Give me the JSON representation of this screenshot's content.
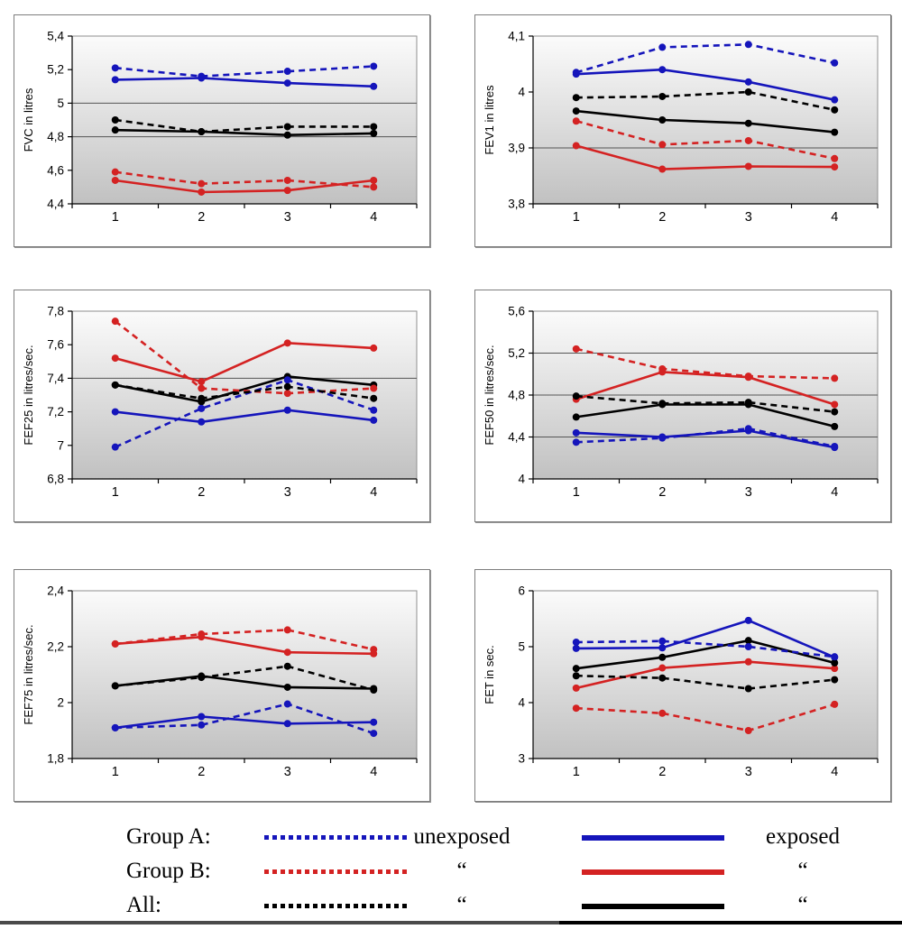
{
  "page": {
    "background": "#ffffff"
  },
  "colors": {
    "group_a": "#1515bb",
    "group_b": "#d42222",
    "all": "#000000"
  },
  "legend": {
    "rows": [
      {
        "label": "Group A:",
        "color": "#1515bb",
        "dashed_text": "unexposed",
        "solid_text": "exposed"
      },
      {
        "label": "Group B:",
        "color": "#d42222",
        "dashed_text": "“",
        "solid_text": "“"
      },
      {
        "label": "All:",
        "color": "#000000",
        "dashed_text": "“",
        "solid_text": "“"
      }
    ]
  },
  "chart_data": [
    {
      "type": "line",
      "id": "fvc",
      "ylabel": "FVC in litres",
      "ylim": [
        4.4,
        5.4
      ],
      "ytick_values": [
        5.4,
        5.2,
        5.0,
        4.8,
        4.6,
        4.4
      ],
      "ytick_labels": [
        "5,4",
        "5,2",
        "5",
        "4,8",
        "4,6",
        "4,4"
      ],
      "gridlines": [
        5.0,
        4.8
      ],
      "categories": [
        "1",
        "2",
        "3",
        "4"
      ],
      "series": [
        {
          "name": "Group A exposed",
          "color": "#1515bb",
          "style": "solid",
          "values": [
            5.14,
            5.15,
            5.12,
            5.1
          ]
        },
        {
          "name": "Group B exposed",
          "color": "#d42222",
          "style": "solid",
          "values": [
            4.54,
            4.47,
            4.48,
            4.54
          ]
        },
        {
          "name": "All exposed",
          "color": "#000000",
          "style": "solid",
          "values": [
            4.84,
            4.83,
            4.81,
            4.82
          ]
        },
        {
          "name": "Group A unexposed",
          "color": "#1515bb",
          "style": "dashed",
          "values": [
            5.21,
            5.16,
            5.19,
            5.22
          ]
        },
        {
          "name": "Group B unexposed",
          "color": "#d42222",
          "style": "dashed",
          "values": [
            4.59,
            4.52,
            4.54,
            4.5
          ]
        },
        {
          "name": "All unexposed",
          "color": "#000000",
          "style": "dashed",
          "values": [
            4.9,
            4.83,
            4.86,
            4.86
          ]
        }
      ]
    },
    {
      "type": "line",
      "id": "fev1",
      "ylabel": "FEV1 in litres",
      "ylim": [
        3.8,
        4.1
      ],
      "ytick_values": [
        4.1,
        4.0,
        3.9,
        3.8
      ],
      "ytick_labels": [
        "4,1",
        "4",
        "3,9",
        "3,8"
      ],
      "gridlines": [
        3.9
      ],
      "categories": [
        "1",
        "2",
        "3",
        "4"
      ],
      "series": [
        {
          "name": "Group A exposed",
          "color": "#1515bb",
          "style": "solid",
          "values": [
            4.032,
            4.04,
            4.018,
            3.986
          ]
        },
        {
          "name": "Group B exposed",
          "color": "#d42222",
          "style": "solid",
          "values": [
            3.904,
            3.862,
            3.867,
            3.866
          ]
        },
        {
          "name": "All exposed",
          "color": "#000000",
          "style": "solid",
          "values": [
            3.966,
            3.95,
            3.944,
            3.928
          ]
        },
        {
          "name": "Group A unexposed",
          "color": "#1515bb",
          "style": "dashed",
          "values": [
            4.035,
            4.08,
            4.085,
            4.052
          ]
        },
        {
          "name": "Group B unexposed",
          "color": "#d42222",
          "style": "dashed",
          "values": [
            3.948,
            3.906,
            3.913,
            3.881
          ]
        },
        {
          "name": "All unexposed",
          "color": "#000000",
          "style": "dashed",
          "values": [
            3.99,
            3.992,
            4.0,
            3.968
          ]
        }
      ]
    },
    {
      "type": "line",
      "id": "fef25",
      "ylabel": "FEF25 in litres/sec.",
      "ylim": [
        6.8,
        7.8
      ],
      "ytick_values": [
        7.8,
        7.6,
        7.4,
        7.2,
        7.0,
        6.8
      ],
      "ytick_labels": [
        "7,8",
        "7,6",
        "7,4",
        "7,2",
        "7",
        "6,8"
      ],
      "gridlines": [
        7.4
      ],
      "categories": [
        "1",
        "2",
        "3",
        "4"
      ],
      "series": [
        {
          "name": "Group A exposed",
          "color": "#1515bb",
          "style": "solid",
          "values": [
            7.2,
            7.14,
            7.21,
            7.15
          ]
        },
        {
          "name": "Group B exposed",
          "color": "#d42222",
          "style": "solid",
          "values": [
            7.52,
            7.38,
            7.61,
            7.58
          ]
        },
        {
          "name": "All exposed",
          "color": "#000000",
          "style": "solid",
          "values": [
            7.36,
            7.26,
            7.41,
            7.36
          ]
        },
        {
          "name": "Group A unexposed",
          "color": "#1515bb",
          "style": "dashed",
          "values": [
            6.99,
            7.22,
            7.39,
            7.21
          ]
        },
        {
          "name": "Group B unexposed",
          "color": "#d42222",
          "style": "dashed",
          "values": [
            7.74,
            7.34,
            7.31,
            7.34
          ]
        },
        {
          "name": "All unexposed",
          "color": "#000000",
          "style": "dashed",
          "values": [
            7.36,
            7.28,
            7.35,
            7.28
          ]
        }
      ]
    },
    {
      "type": "line",
      "id": "fef50",
      "ylabel": "FEF50 in litres/sec.",
      "ylim": [
        4.0,
        5.6
      ],
      "ytick_values": [
        5.6,
        5.2,
        4.8,
        4.4,
        4.0
      ],
      "ytick_labels": [
        "5,6",
        "5,2",
        "4,8",
        "4,4",
        "4"
      ],
      "gridlines": [
        5.2,
        4.8,
        4.4
      ],
      "categories": [
        "1",
        "2",
        "3",
        "4"
      ],
      "series": [
        {
          "name": "Group A exposed",
          "color": "#1515bb",
          "style": "solid",
          "values": [
            4.44,
            4.4,
            4.46,
            4.3
          ]
        },
        {
          "name": "Group B exposed",
          "color": "#d42222",
          "style": "solid",
          "values": [
            4.76,
            5.02,
            4.97,
            4.71
          ]
        },
        {
          "name": "All exposed",
          "color": "#000000",
          "style": "solid",
          "values": [
            4.59,
            4.71,
            4.71,
            4.5
          ]
        },
        {
          "name": "Group A unexposed",
          "color": "#1515bb",
          "style": "dashed",
          "values": [
            4.35,
            4.39,
            4.48,
            4.31
          ]
        },
        {
          "name": "Group B unexposed",
          "color": "#d42222",
          "style": "dashed",
          "values": [
            5.24,
            5.05,
            4.98,
            4.96
          ]
        },
        {
          "name": "All unexposed",
          "color": "#000000",
          "style": "dashed",
          "values": [
            4.79,
            4.72,
            4.73,
            4.64
          ]
        }
      ]
    },
    {
      "type": "line",
      "id": "fef75",
      "ylabel": "FEF75 in litres/sec.",
      "ylim": [
        1.8,
        2.4
      ],
      "ytick_values": [
        2.4,
        2.2,
        2.0,
        1.8
      ],
      "ytick_labels": [
        "2,4",
        "2,2",
        "2",
        "1,8"
      ],
      "gridlines": [],
      "categories": [
        "1",
        "2",
        "3",
        "4"
      ],
      "series": [
        {
          "name": "Group A exposed",
          "color": "#1515bb",
          "style": "solid",
          "values": [
            1.91,
            1.95,
            1.925,
            1.93
          ]
        },
        {
          "name": "Group B exposed",
          "color": "#d42222",
          "style": "solid",
          "values": [
            2.21,
            2.235,
            2.18,
            2.175
          ]
        },
        {
          "name": "All exposed",
          "color": "#000000",
          "style": "solid",
          "values": [
            2.06,
            2.095,
            2.055,
            2.05
          ]
        },
        {
          "name": "Group A unexposed",
          "color": "#1515bb",
          "style": "dashed",
          "values": [
            1.91,
            1.92,
            1.995,
            1.89
          ]
        },
        {
          "name": "Group B unexposed",
          "color": "#d42222",
          "style": "dashed",
          "values": [
            2.21,
            2.245,
            2.26,
            2.19
          ]
        },
        {
          "name": "All unexposed",
          "color": "#000000",
          "style": "dashed",
          "values": [
            2.06,
            2.09,
            2.13,
            2.045
          ]
        }
      ]
    },
    {
      "type": "line",
      "id": "fet",
      "ylabel": "FET in sec.",
      "ylim": [
        3.0,
        6.0
      ],
      "ytick_values": [
        6,
        5,
        4,
        3
      ],
      "ytick_labels": [
        "6",
        "5",
        "4",
        "3"
      ],
      "gridlines": [],
      "categories": [
        "1",
        "2",
        "3",
        "4"
      ],
      "series": [
        {
          "name": "Group A exposed",
          "color": "#1515bb",
          "style": "solid",
          "values": [
            4.97,
            4.98,
            5.47,
            4.81
          ]
        },
        {
          "name": "Group B exposed",
          "color": "#d42222",
          "style": "solid",
          "values": [
            4.26,
            4.62,
            4.73,
            4.61
          ]
        },
        {
          "name": "All exposed",
          "color": "#000000",
          "style": "solid",
          "values": [
            4.61,
            4.81,
            5.11,
            4.71
          ]
        },
        {
          "name": "Group A unexposed",
          "color": "#1515bb",
          "style": "dashed",
          "values": [
            5.08,
            5.1,
            5.0,
            4.82
          ]
        },
        {
          "name": "Group B unexposed",
          "color": "#d42222",
          "style": "dashed",
          "values": [
            3.9,
            3.81,
            3.5,
            3.97
          ]
        },
        {
          "name": "All unexposed",
          "color": "#000000",
          "style": "dashed",
          "values": [
            4.48,
            4.44,
            4.25,
            4.41
          ]
        }
      ]
    }
  ]
}
